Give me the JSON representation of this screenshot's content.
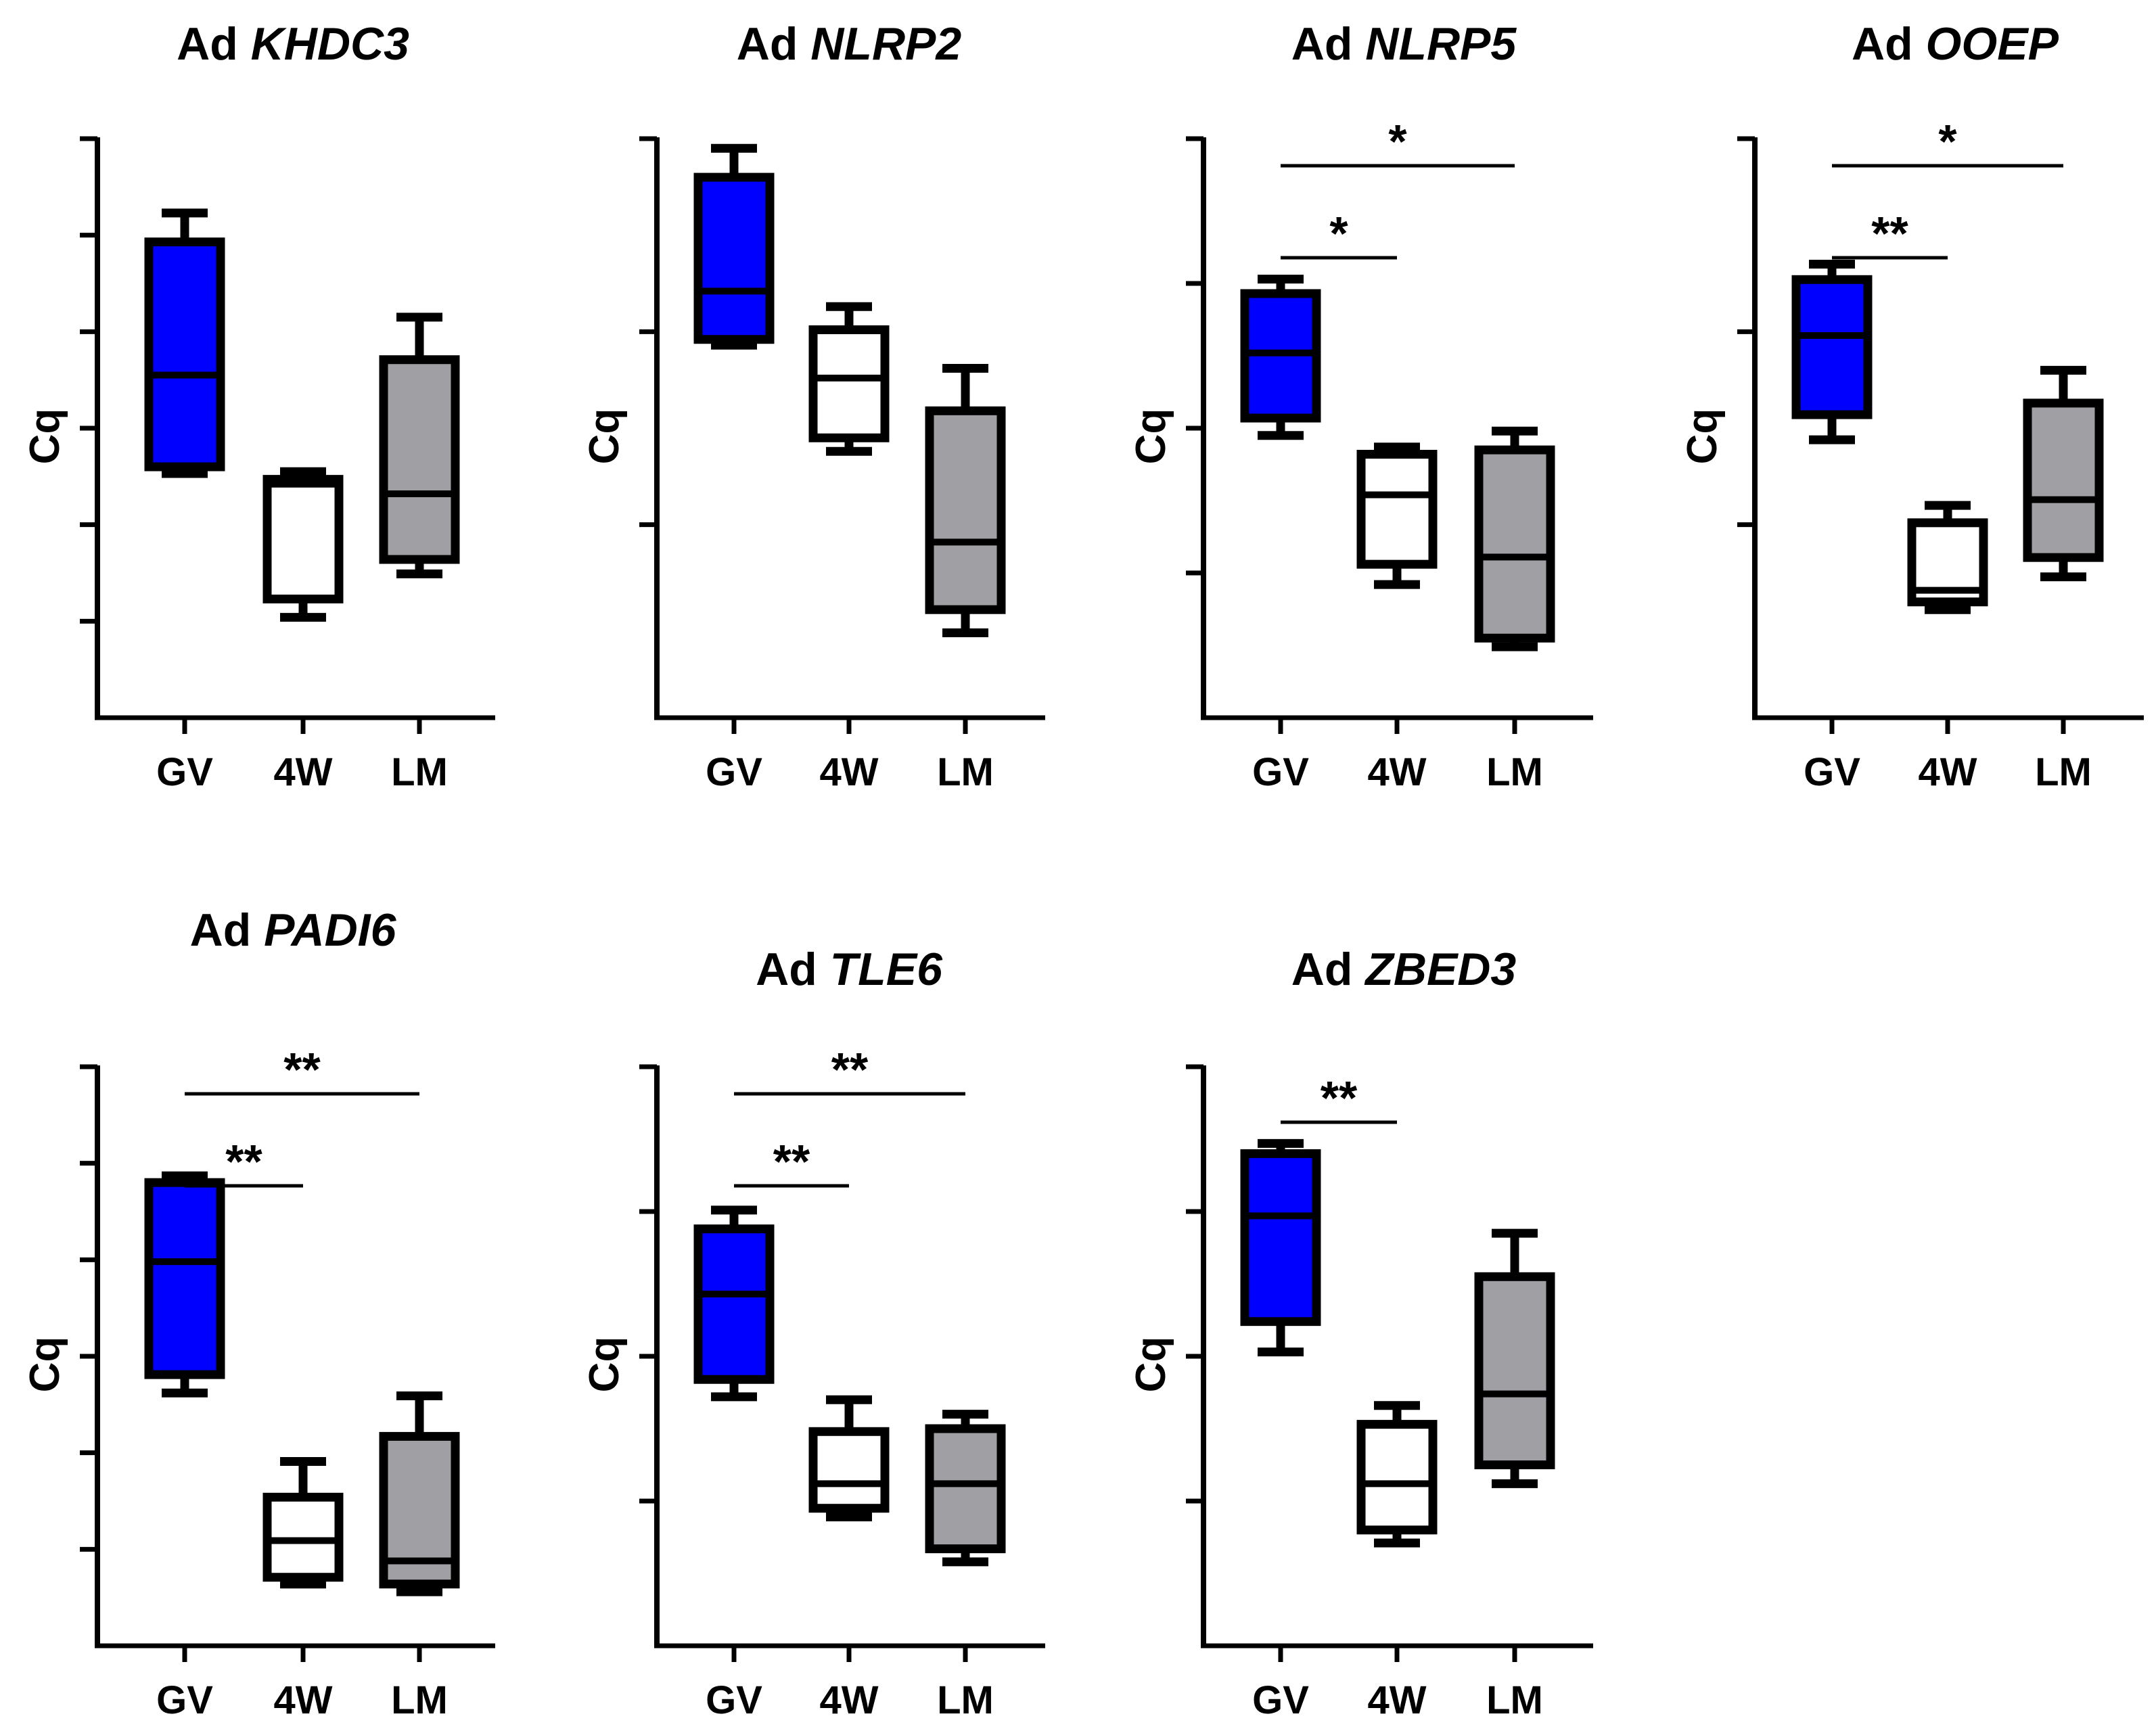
{
  "colors": {
    "GV": "#0000ff",
    "4W": "#ffffff",
    "LM": "#a0a0a4",
    "stroke": "#000000"
  },
  "chart_data": [
    {
      "type": "box",
      "title_prefix": "Ad",
      "title_gene": "KHDC3",
      "ylabel": "Cq",
      "categories": [
        "GV",
        "4W",
        "LM"
      ],
      "ylim": [
        0,
        6
      ],
      "yticks": [
        1,
        2,
        3,
        4,
        5,
        6
      ],
      "boxes": [
        {
          "category": "GV",
          "min": 2.53,
          "q1": 2.6,
          "median": 3.55,
          "q3": 4.93,
          "max": 5.23
        },
        {
          "category": "4W",
          "min": 1.04,
          "q1": 1.23,
          "median": 2.42,
          "q3": 2.47,
          "max": 2.55
        },
        {
          "category": "LM",
          "min": 1.49,
          "q1": 1.64,
          "median": 2.32,
          "q3": 3.71,
          "max": 4.15
        }
      ],
      "significance": []
    },
    {
      "type": "box",
      "title_prefix": "Ad",
      "title_gene": "NLRP2",
      "ylabel": "Cq",
      "categories": [
        "GV",
        "4W",
        "LM"
      ],
      "ylim": [
        0,
        3
      ],
      "yticks": [
        1,
        2,
        3
      ],
      "boxes": [
        {
          "category": "GV",
          "min": 1.93,
          "q1": 1.96,
          "median": 2.21,
          "q3": 2.8,
          "max": 2.95
        },
        {
          "category": "4W",
          "min": 1.38,
          "q1": 1.45,
          "median": 1.76,
          "q3": 2.01,
          "max": 2.13
        },
        {
          "category": "LM",
          "min": 0.44,
          "q1": 0.56,
          "median": 0.91,
          "q3": 1.59,
          "max": 1.81
        }
      ],
      "significance": []
    },
    {
      "type": "box",
      "title_prefix": "Ad",
      "title_gene": "NLRP5",
      "ylabel": "Cq",
      "categories": [
        "GV",
        "4W",
        "LM"
      ],
      "ylim": [
        0,
        4
      ],
      "yticks": [
        1,
        2,
        3,
        4
      ],
      "boxes": [
        {
          "category": "GV",
          "min": 1.95,
          "q1": 2.07,
          "median": 2.52,
          "q3": 2.93,
          "max": 3.03
        },
        {
          "category": "4W",
          "min": 0.92,
          "q1": 1.06,
          "median": 1.54,
          "q3": 1.82,
          "max": 1.87
        },
        {
          "category": "LM",
          "min": 0.49,
          "q1": 0.55,
          "median": 1.11,
          "q3": 1.85,
          "max": 1.98
        }
      ],
      "significance": [
        {
          "from": "GV",
          "to": "4W",
          "label": "*"
        },
        {
          "from": "GV",
          "to": "LM",
          "label": "*"
        }
      ]
    },
    {
      "type": "box",
      "title_prefix": "Ad",
      "title_gene": "OOEP",
      "ylabel": "Cq",
      "categories": [
        "GV",
        "4W",
        "LM"
      ],
      "ylim": [
        0,
        3
      ],
      "yticks": [
        1,
        2,
        3
      ],
      "boxes": [
        {
          "category": "GV",
          "min": 1.44,
          "q1": 1.57,
          "median": 1.98,
          "q3": 2.27,
          "max": 2.35
        },
        {
          "category": "4W",
          "min": 0.56,
          "q1": 0.6,
          "median": 0.66,
          "q3": 1.01,
          "max": 1.1
        },
        {
          "category": "LM",
          "min": 0.73,
          "q1": 0.83,
          "median": 1.13,
          "q3": 1.63,
          "max": 1.8
        }
      ],
      "significance": [
        {
          "from": "GV",
          "to": "4W",
          "label": "**"
        },
        {
          "from": "GV",
          "to": "LM",
          "label": "*"
        }
      ]
    },
    {
      "type": "box",
      "title_prefix": "Ad",
      "title_gene": "PADI6",
      "ylabel": "Cq",
      "categories": [
        "GV",
        "4W",
        "LM"
      ],
      "ylim": [
        0,
        6
      ],
      "yticks": [
        1,
        2,
        3,
        4,
        5,
        6
      ],
      "boxes": [
        {
          "category": "GV",
          "min": 2.62,
          "q1": 2.81,
          "median": 3.98,
          "q3": 4.8,
          "max": 4.87
        },
        {
          "category": "4W",
          "min": 0.64,
          "q1": 0.71,
          "median": 1.09,
          "q3": 1.54,
          "max": 1.91
        },
        {
          "category": "LM",
          "min": 0.56,
          "q1": 0.64,
          "median": 0.88,
          "q3": 2.17,
          "max": 2.59
        }
      ],
      "significance": [
        {
          "from": "GV",
          "to": "4W",
          "label": "**"
        },
        {
          "from": "GV",
          "to": "LM",
          "label": "**"
        }
      ]
    },
    {
      "type": "box",
      "title_prefix": "Ad",
      "title_gene": "TLE6",
      "ylabel": "Cq",
      "categories": [
        "GV",
        "4W",
        "LM"
      ],
      "ylim": [
        0,
        4
      ],
      "yticks": [
        1,
        2,
        3,
        4
      ],
      "boxes": [
        {
          "category": "GV",
          "min": 1.72,
          "q1": 1.84,
          "median": 2.43,
          "q3": 2.88,
          "max": 3.01
        },
        {
          "category": "4W",
          "min": 0.89,
          "q1": 0.95,
          "median": 1.12,
          "q3": 1.48,
          "max": 1.7
        },
        {
          "category": "LM",
          "min": 0.58,
          "q1": 0.67,
          "median": 1.12,
          "q3": 1.5,
          "max": 1.6
        }
      ],
      "significance": [
        {
          "from": "GV",
          "to": "4W",
          "label": "**"
        },
        {
          "from": "GV",
          "to": "LM",
          "label": "**"
        }
      ]
    },
    {
      "type": "box",
      "title_prefix": "Ad",
      "title_gene": "ZBED3",
      "ylabel": "Cq",
      "categories": [
        "GV",
        "4W",
        "LM"
      ],
      "ylim": [
        0,
        4
      ],
      "yticks": [
        1,
        2,
        3,
        4
      ],
      "boxes": [
        {
          "category": "GV",
          "min": 2.03,
          "q1": 2.24,
          "median": 2.97,
          "q3": 3.4,
          "max": 3.47
        },
        {
          "category": "4W",
          "min": 0.71,
          "q1": 0.8,
          "median": 1.12,
          "q3": 1.53,
          "max": 1.66
        },
        {
          "category": "LM",
          "min": 1.12,
          "q1": 1.25,
          "median": 1.74,
          "q3": 2.55,
          "max": 2.85
        }
      ],
      "significance": [
        {
          "from": "GV",
          "to": "4W",
          "label": "**"
        }
      ]
    }
  ]
}
